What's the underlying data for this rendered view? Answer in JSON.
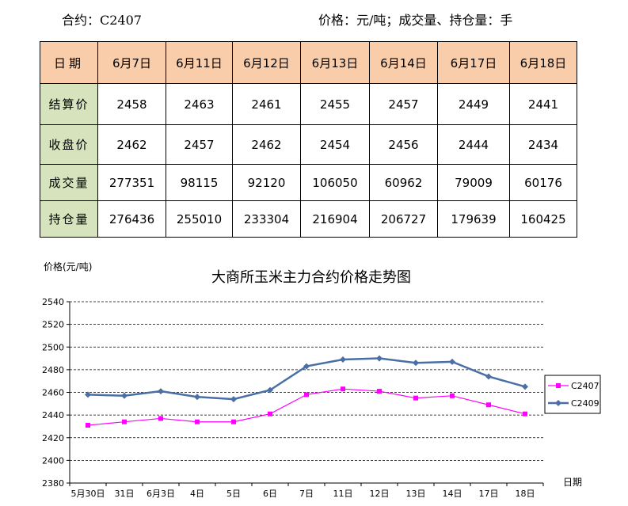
{
  "header": {
    "contract": "合约：C2407",
    "unit_note": "价格：元/吨；成交量、持仓量：手"
  },
  "table": {
    "corner": "日期",
    "dates": [
      "6月7日",
      "6月11日",
      "6月12日",
      "6月13日",
      "6月14日",
      "6月17日",
      "6月18日"
    ],
    "rows": [
      {
        "label": "结算价",
        "values": [
          "2458",
          "2463",
          "2461",
          "2455",
          "2457",
          "2449",
          "2441"
        ]
      },
      {
        "label": "收盘价",
        "values": [
          "2462",
          "2457",
          "2462",
          "2454",
          "2456",
          "2444",
          "2434"
        ]
      },
      {
        "label": "成交量",
        "values": [
          "277351",
          "98115",
          "92120",
          "106050",
          "60962",
          "79009",
          "60176"
        ]
      },
      {
        "label": "持仓量",
        "values": [
          "276436",
          "255010",
          "233304",
          "216904",
          "206727",
          "179639",
          "160425"
        ]
      }
    ]
  },
  "chart_data": {
    "type": "line",
    "title": "大商所玉米主力合约价格走势图",
    "ylabel": "价格(元/吨)",
    "xlabel": "日期",
    "categories": [
      "5月30日",
      "31日",
      "6月3日",
      "4日",
      "5日",
      "6日",
      "7日",
      "11日",
      "12日",
      "13日",
      "14日",
      "17日",
      "18日"
    ],
    "ylim": [
      2380,
      2540
    ],
    "yticks": [
      2380,
      2400,
      2420,
      2440,
      2460,
      2480,
      2500,
      2520,
      2540
    ],
    "grid": true,
    "legend_position": "right",
    "series": [
      {
        "name": "C2407",
        "color": "#ff00ff",
        "marker": "square",
        "values": [
          2431,
          2434,
          2437,
          2434,
          2434,
          2441,
          2458,
          2463,
          2461,
          2455,
          2457,
          2449,
          2441
        ]
      },
      {
        "name": "C2409",
        "color": "#4a6fa5",
        "marker": "diamond",
        "values": [
          2458,
          2457,
          2461,
          2456,
          2454,
          2462,
          2483,
          2489,
          2490,
          2486,
          2487,
          2474,
          2465
        ]
      }
    ]
  }
}
